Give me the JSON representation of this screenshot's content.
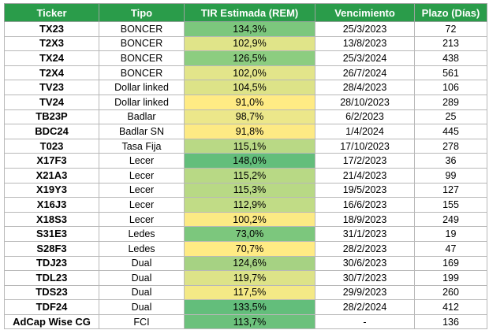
{
  "table": {
    "headers": [
      "Ticker",
      "Tipo",
      "TIR Estimada (REM)",
      "Vencimiento",
      "Plazo (Días)"
    ],
    "rows": [
      {
        "ticker": "TX23",
        "tipo": "BONCER",
        "tir": "134,3%",
        "tir_color": "#7cc77d",
        "venc": "25/3/2023",
        "plazo": "72"
      },
      {
        "ticker": "T2X3",
        "tipo": "BONCER",
        "tir": "102,9%",
        "tir_color": "#e0e489",
        "venc": "13/8/2023",
        "plazo": "213"
      },
      {
        "ticker": "TX24",
        "tipo": "BONCER",
        "tir": "126,5%",
        "tir_color": "#8ccd80",
        "venc": "25/3/2024",
        "plazo": "438"
      },
      {
        "ticker": "T2X4",
        "tipo": "BONCER",
        "tir": "102,0%",
        "tir_color": "#e3e58a",
        "venc": "26/7/2024",
        "plazo": "561"
      },
      {
        "ticker": "TV23",
        "tipo": "Dollar linked",
        "tir": "104,5%",
        "tir_color": "#dde388",
        "venc": "28/4/2023",
        "plazo": "106"
      },
      {
        "ticker": "TV24",
        "tipo": "Dollar linked",
        "tir": "91,0%",
        "tir_color": "#ffeb84",
        "venc": "28/10/2023",
        "plazo": "289"
      },
      {
        "ticker": "TB23P",
        "tipo": "Badlar",
        "tir": "98,7%",
        "tir_color": "#ece78a",
        "venc": "6/2/2023",
        "plazo": "25"
      },
      {
        "ticker": "BDC24",
        "tipo": "Badlar SN",
        "tir": "91,8%",
        "tir_color": "#fdea84",
        "venc": "1/4/2024",
        "plazo": "445"
      },
      {
        "ticker": "T023",
        "tipo": "Tasa Fija",
        "tir": "115,1%",
        "tir_color": "#b9d985",
        "venc": "17/10/2023",
        "plazo": "278"
      },
      {
        "ticker": "X17F3",
        "tipo": "Lecer",
        "tir": "148,0%",
        "tir_color": "#63be7b",
        "venc": "17/2/2023",
        "plazo": "36"
      },
      {
        "ticker": "X21A3",
        "tipo": "Lecer",
        "tir": "115,2%",
        "tir_color": "#b8d985",
        "venc": "21/4/2023",
        "plazo": "99"
      },
      {
        "ticker": "X19Y3",
        "tipo": "Lecer",
        "tir": "115,3%",
        "tir_color": "#b8d985",
        "venc": "19/5/2023",
        "plazo": "127"
      },
      {
        "ticker": "X16J3",
        "tipo": "Lecer",
        "tir": "112,9%",
        "tir_color": "#c1dc86",
        "venc": "16/6/2023",
        "plazo": "155"
      },
      {
        "ticker": "X18S3",
        "tipo": "Lecer",
        "tir": "100,2%",
        "tir_color": "#fcea84",
        "venc": "18/9/2023",
        "plazo": "249"
      },
      {
        "ticker": "S31E3",
        "tipo": "Ledes",
        "tir": "73,0%",
        "tir_color": "#7cc77d",
        "venc": "31/1/2023",
        "plazo": "19"
      },
      {
        "ticker": "S28F3",
        "tipo": "Ledes",
        "tir": "70,7%",
        "tir_color": "#ffeb84",
        "venc": "28/2/2023",
        "plazo": "47"
      },
      {
        "ticker": "TDJ23",
        "tipo": "Dual",
        "tir": "124,6%",
        "tir_color": "#a6d283",
        "venc": "30/6/2023",
        "plazo": "169"
      },
      {
        "ticker": "TDL23",
        "tipo": "Dual",
        "tir": "119,7%",
        "tir_color": "#dde388",
        "venc": "30/7/2023",
        "plazo": "199"
      },
      {
        "ticker": "TDS23",
        "tipo": "Dual",
        "tir": "117,5%",
        "tir_color": "#f4e986",
        "venc": "29/9/2023",
        "plazo": "260"
      },
      {
        "ticker": "TDF24",
        "tipo": "Dual",
        "tir": "133,5%",
        "tir_color": "#63be7b",
        "venc": "28/2/2024",
        "plazo": "412"
      },
      {
        "ticker": "AdCap Wise CG",
        "tipo": "FCI",
        "tir": "113,7%",
        "tir_color": "#6cc17c",
        "venc": "-",
        "plazo": "136"
      }
    ]
  }
}
